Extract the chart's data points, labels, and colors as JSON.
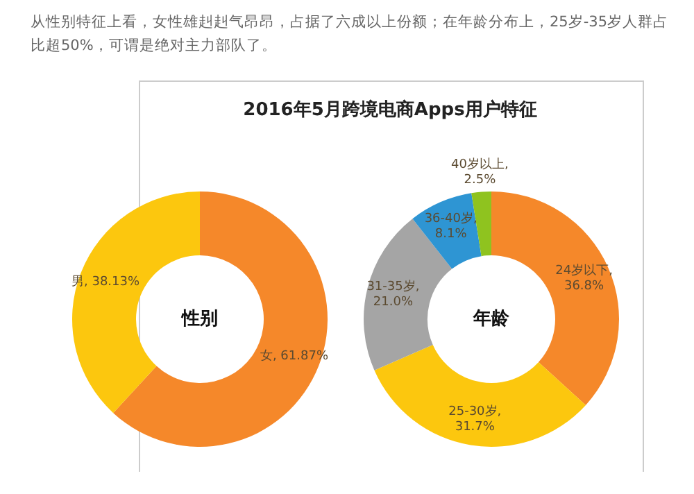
{
  "chart_data": [
    {
      "type": "donut",
      "title": "2016年5月跨境电商Apps用户特征",
      "annotations": [
        "从性别特征上看，女性雄赳赳气昂昂，占据了六成以上份额；在年龄分布上，25岁-35岁人群占比超50%，可谓是绝对主力部队了。",
        "性别"
      ],
      "categories": [
        "女",
        "男"
      ],
      "values": [
        61.87,
        38.13
      ],
      "colors": [
        "#f5882a",
        "#fcc70e"
      ],
      "value_labels": [
        ", 61.87%",
        ", 38.13%"
      ],
      "legend": false
    },
    {
      "type": "donut",
      "annotations": [
        "年龄"
      ],
      "categories": [
        "24岁以下",
        "25-30岁",
        "31-35岁",
        "36-40岁",
        "40岁以上"
      ],
      "values": [
        36.8,
        31.7,
        21.0,
        8.1,
        2.5
      ],
      "colors": [
        "#f5882a",
        "#fcc70e",
        "#a5a5a5",
        "#2e95d3",
        "#8fc31f"
      ],
      "value_labels": [
        ",\n36.8%",
        ",\n31.7%",
        ",\n21.0%",
        ",\n8.1%",
        ",\n2.5%"
      ],
      "legend": false
    }
  ]
}
